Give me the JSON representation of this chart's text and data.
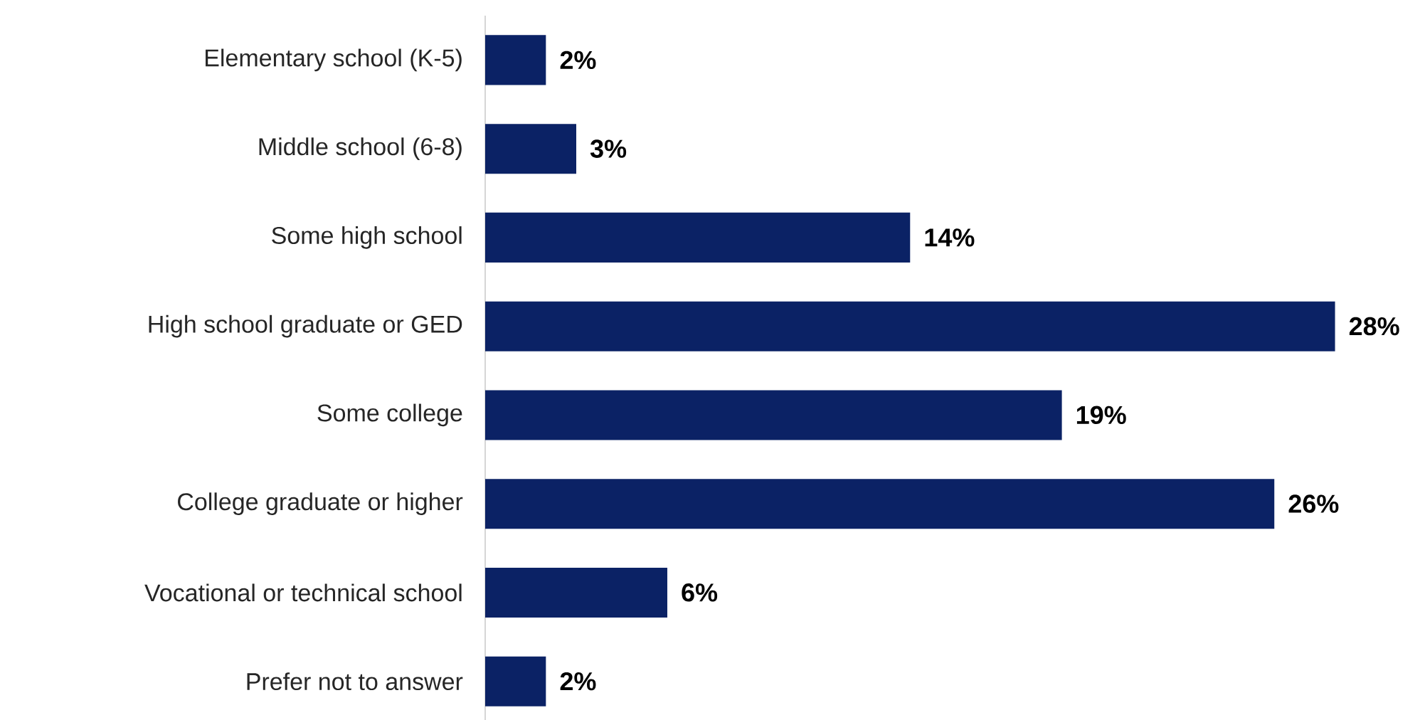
{
  "chart_data": {
    "type": "bar",
    "orientation": "horizontal",
    "categories": [
      "Elementary school (K-5)",
      "Middle school (6-8)",
      "Some high school",
      "High school graduate or GED",
      "Some college",
      "College graduate or higher",
      "Vocational or technical school",
      "Prefer not to answer"
    ],
    "values": [
      2,
      3,
      14,
      28,
      19,
      26,
      6,
      2
    ],
    "value_labels": [
      "2%",
      "3%",
      "14%",
      "28%",
      "19%",
      "26%",
      "6%",
      "2%"
    ],
    "color": "#0b2265",
    "tick_labels": "y"
  }
}
